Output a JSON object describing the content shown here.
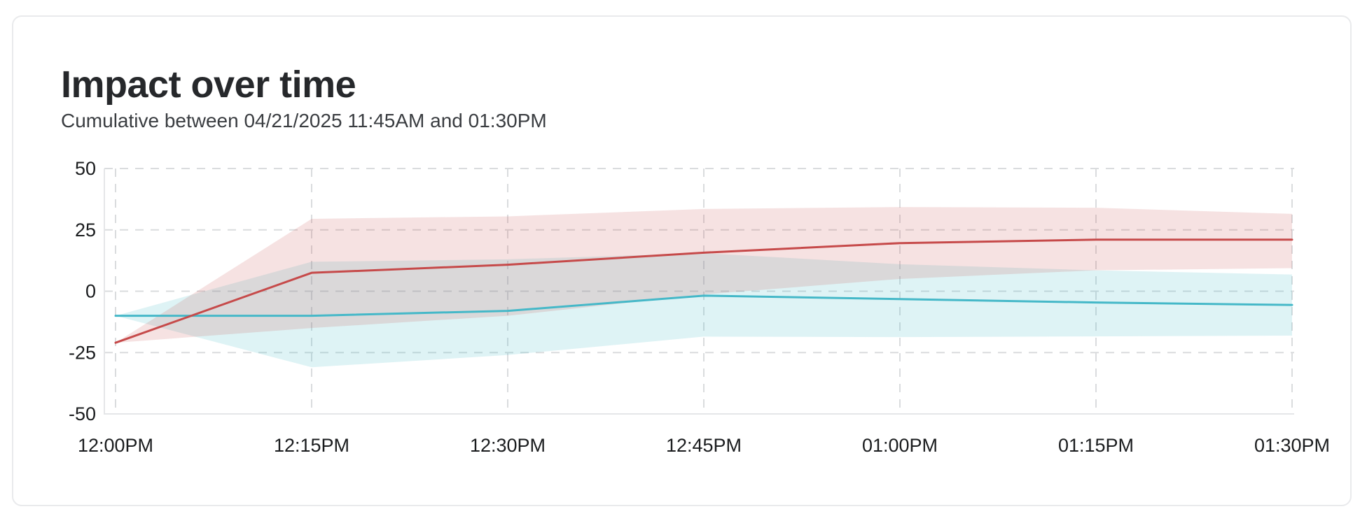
{
  "card": {
    "title": "Impact over time",
    "subtitle": "Cumulative between 04/21/2025 11:45AM and 01:30PM"
  },
  "chart_data": {
    "type": "line",
    "title": "Impact over time",
    "subtitle": "Cumulative between 04/21/2025 11:45AM and 01:30PM",
    "xlabel": "",
    "ylabel": "",
    "categories": [
      "12:00PM",
      "12:15PM",
      "12:30PM",
      "12:45PM",
      "01:00PM",
      "01:15PM",
      "01:30PM"
    ],
    "y_ticks": [
      "50",
      "25",
      "0",
      "-25",
      "-50"
    ],
    "ylim": [
      -50,
      50
    ],
    "grid": "dashed",
    "legend": "none",
    "series": [
      {
        "name": "red-series",
        "color": "#c64a4a",
        "band_color": "rgba(202,75,75,0.16)",
        "values": [
          -21,
          7.5,
          10.8,
          15.7,
          19.6,
          21,
          21
        ],
        "band_upper": [
          -21,
          29.5,
          30.5,
          33.5,
          34.3,
          34,
          31.5
        ],
        "band_lower": [
          -21,
          -15,
          -10,
          -1.3,
          5,
          8.5,
          9.4
        ]
      },
      {
        "name": "cyan-series",
        "color": "#45b8c8",
        "band_color": "rgba(72,188,202,0.18)",
        "values": [
          -10,
          -10,
          -8,
          -1.8,
          -3.2,
          -4.6,
          -5.6
        ],
        "band_upper": [
          -10,
          12,
          13,
          15.5,
          11,
          8.5,
          6.8
        ],
        "band_lower": [
          -10,
          -31,
          -26,
          -18.5,
          -18.7,
          -18.4,
          -18.1
        ]
      }
    ]
  }
}
